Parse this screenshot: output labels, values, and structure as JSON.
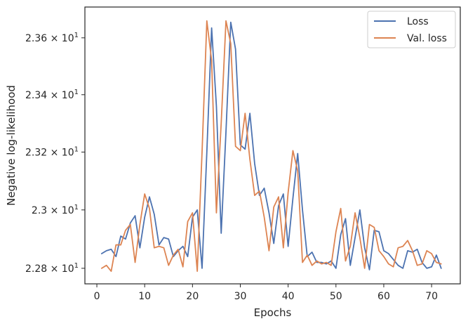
{
  "chart_data": {
    "type": "line",
    "xlabel": "Epochs",
    "ylabel": "Negative log-likelihood",
    "xlim": [
      -2.5,
      76.0
    ],
    "ylim": [
      22.747,
      23.709
    ],
    "x_ticks": [
      0,
      10,
      20,
      30,
      40,
      50,
      60,
      70
    ],
    "x_tick_labels": [
      "0",
      "10",
      "20",
      "30",
      "40",
      "50",
      "60",
      "70"
    ],
    "y_ticks": [
      22.8,
      23.0,
      23.2,
      23.4,
      23.6
    ],
    "y_tick_labels": [
      {
        "mant": "2.28",
        "exp": "1"
      },
      {
        "mant": "2.3",
        "exp": "1"
      },
      {
        "mant": "2.32",
        "exp": "1"
      },
      {
        "mant": "2.34",
        "exp": "1"
      },
      {
        "mant": "2.36",
        "exp": "1"
      }
    ],
    "y_scale": "log",
    "grid": false,
    "legend_position": "top-right",
    "x": [
      1,
      2,
      3,
      4,
      5,
      6,
      7,
      8,
      9,
      10,
      11,
      12,
      13,
      14,
      15,
      16,
      17,
      18,
      19,
      20,
      21,
      22,
      23,
      24,
      25,
      26,
      27,
      28,
      29,
      30,
      31,
      32,
      33,
      34,
      35,
      36,
      37,
      38,
      39,
      40,
      41,
      42,
      43,
      44,
      45,
      46,
      47,
      48,
      49,
      50,
      51,
      52,
      53,
      54,
      55,
      56,
      57,
      58,
      59,
      60,
      61,
      62,
      63,
      64,
      65,
      66,
      67,
      68,
      69,
      70,
      71,
      72
    ],
    "series": [
      {
        "name": "Loss",
        "color": "#4c72b0",
        "values": [
          22.85,
          22.86,
          22.865,
          22.84,
          22.91,
          22.9,
          22.955,
          22.98,
          22.87,
          22.975,
          23.045,
          22.985,
          22.88,
          22.905,
          22.9,
          22.84,
          22.86,
          22.875,
          22.84,
          22.975,
          23.0,
          22.8,
          23.2,
          23.635,
          23.36,
          22.92,
          23.27,
          23.655,
          23.56,
          23.225,
          23.21,
          23.335,
          23.16,
          23.05,
          23.075,
          22.99,
          22.885,
          23.015,
          23.055,
          22.875,
          23.04,
          23.195,
          23.0,
          22.84,
          22.855,
          22.82,
          22.82,
          22.815,
          22.825,
          22.8,
          22.915,
          22.97,
          22.81,
          22.905,
          23.0,
          22.87,
          22.795,
          22.93,
          22.925,
          22.86,
          22.85,
          22.83,
          22.81,
          22.8,
          22.86,
          22.855,
          22.865,
          22.82,
          22.8,
          22.805,
          22.845,
          22.8
        ]
      },
      {
        "name": "Val. loss",
        "color": "#dd8452",
        "values": [
          22.8,
          22.81,
          22.79,
          22.88,
          22.88,
          22.93,
          22.95,
          22.82,
          22.95,
          23.055,
          23.005,
          22.87,
          22.875,
          22.87,
          22.81,
          22.845,
          22.865,
          22.805,
          22.96,
          22.99,
          22.79,
          23.2,
          23.66,
          23.52,
          22.99,
          23.3,
          23.66,
          23.58,
          23.22,
          23.205,
          23.335,
          23.175,
          23.05,
          23.065,
          22.975,
          22.86,
          23.01,
          23.045,
          22.87,
          23.06,
          23.205,
          23.135,
          22.82,
          22.845,
          22.81,
          22.825,
          22.815,
          22.82,
          22.81,
          22.925,
          23.005,
          22.825,
          22.875,
          22.99,
          22.905,
          22.8,
          22.95,
          22.94,
          22.86,
          22.84,
          22.815,
          22.805,
          22.87,
          22.875,
          22.895,
          22.86,
          22.81,
          22.815,
          22.86,
          22.85,
          22.82,
          22.815
        ]
      }
    ]
  }
}
